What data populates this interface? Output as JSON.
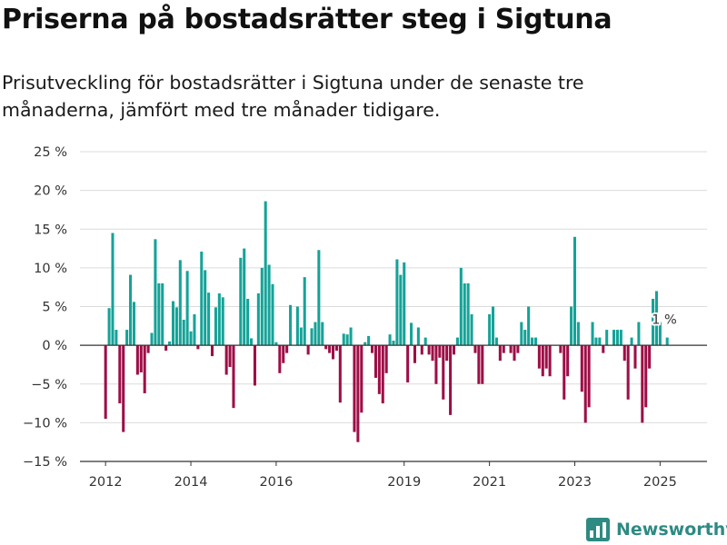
{
  "header": {
    "title": "Priserna på bostadsrätter steg i Sigtuna",
    "subtitle": "Prisutveckling för bostadsrätter i Sigtuna under de senaste tre månaderna, jämfört med tre månader tidigare."
  },
  "brand": {
    "name": "Newsworthy",
    "icon": "newsworthy-chart-logo-icon",
    "color": "#2e8a83"
  },
  "chart_data": {
    "type": "bar",
    "title": "Priserna på bostadsrätter steg i Sigtuna",
    "subtitle": "Prisutveckling för bostadsrätter i Sigtuna under de senaste tre månaderna, jämfört med tre månader tidigare.",
    "xlabel": "",
    "ylabel": "",
    "x_start": 2012.0,
    "x_step": 0.0833333,
    "xlim": [
      2011.4,
      2026.1
    ],
    "ylim": [
      -15,
      25
    ],
    "y_ticks": [
      -15,
      -10,
      -5,
      0,
      5,
      10,
      15,
      20,
      25
    ],
    "y_tick_labels": [
      "−15 %",
      "−10 %",
      "−5 %",
      "0 %",
      "5 %",
      "10 %",
      "15 %",
      "20 %",
      "25 %"
    ],
    "x_ticks": [
      2012,
      2014,
      2016,
      2019,
      2021,
      2023,
      2025
    ],
    "x_tick_labels": [
      "2012",
      "2014",
      "2016",
      "2019",
      "2021",
      "2023",
      "2025"
    ],
    "grid": "horizontal",
    "legend": "none",
    "positive_color": "#15a398",
    "negative_color": "#9e0e46",
    "annotation": {
      "label": "1 %",
      "value": 1
    },
    "values": [
      -9.5,
      4.8,
      14.5,
      2,
      -7.5,
      -11.2,
      2,
      9.1,
      5.6,
      -3.8,
      -3.5,
      -6.2,
      -1,
      1.6,
      13.7,
      8,
      8,
      -0.7,
      0.5,
      5.7,
      4.9,
      11,
      3.3,
      9.6,
      1.8,
      4,
      -0.5,
      12.1,
      9.7,
      6.8,
      -1.4,
      4.9,
      6.7,
      6.2,
      -3.8,
      -2.8,
      -8.1,
      0,
      11.3,
      12.5,
      6,
      0.9,
      -5.2,
      6.7,
      10,
      18.6,
      10.4,
      7.9,
      0.4,
      -3.6,
      -2.3,
      -1,
      5.2,
      0,
      5,
      2.3,
      8.8,
      -1.2,
      2.2,
      3,
      12.3,
      3,
      -0.5,
      -1,
      -1.8,
      -0.7,
      -7.4,
      1.5,
      1.4,
      2.3,
      -11.2,
      -12.5,
      -8.7,
      0.4,
      1.2,
      -1,
      -4.2,
      -6.3,
      -7.5,
      -3.6,
      1.4,
      0.6,
      11.1,
      9.1,
      10.7,
      -4.8,
      2.9,
      -2.3,
      2.3,
      -1.2,
      1,
      -1.2,
      -2,
      -5,
      -1.6,
      -7,
      -2,
      -9,
      -1.2,
      1,
      10,
      8,
      8,
      4,
      -1,
      -5,
      -5,
      0,
      4,
      5,
      1,
      -2,
      -1,
      0,
      -1,
      -2,
      -1,
      3,
      2,
      5,
      1,
      1,
      -3,
      -4,
      -3,
      -4,
      0,
      0,
      -1,
      -7,
      -4,
      5,
      14,
      3,
      -6,
      -10,
      -8,
      3,
      1,
      1,
      -1,
      2,
      0,
      2,
      2,
      2,
      -2,
      -7,
      1,
      -3,
      3,
      -10,
      -8,
      -3,
      6,
      7,
      3,
      0,
      1
    ]
  }
}
